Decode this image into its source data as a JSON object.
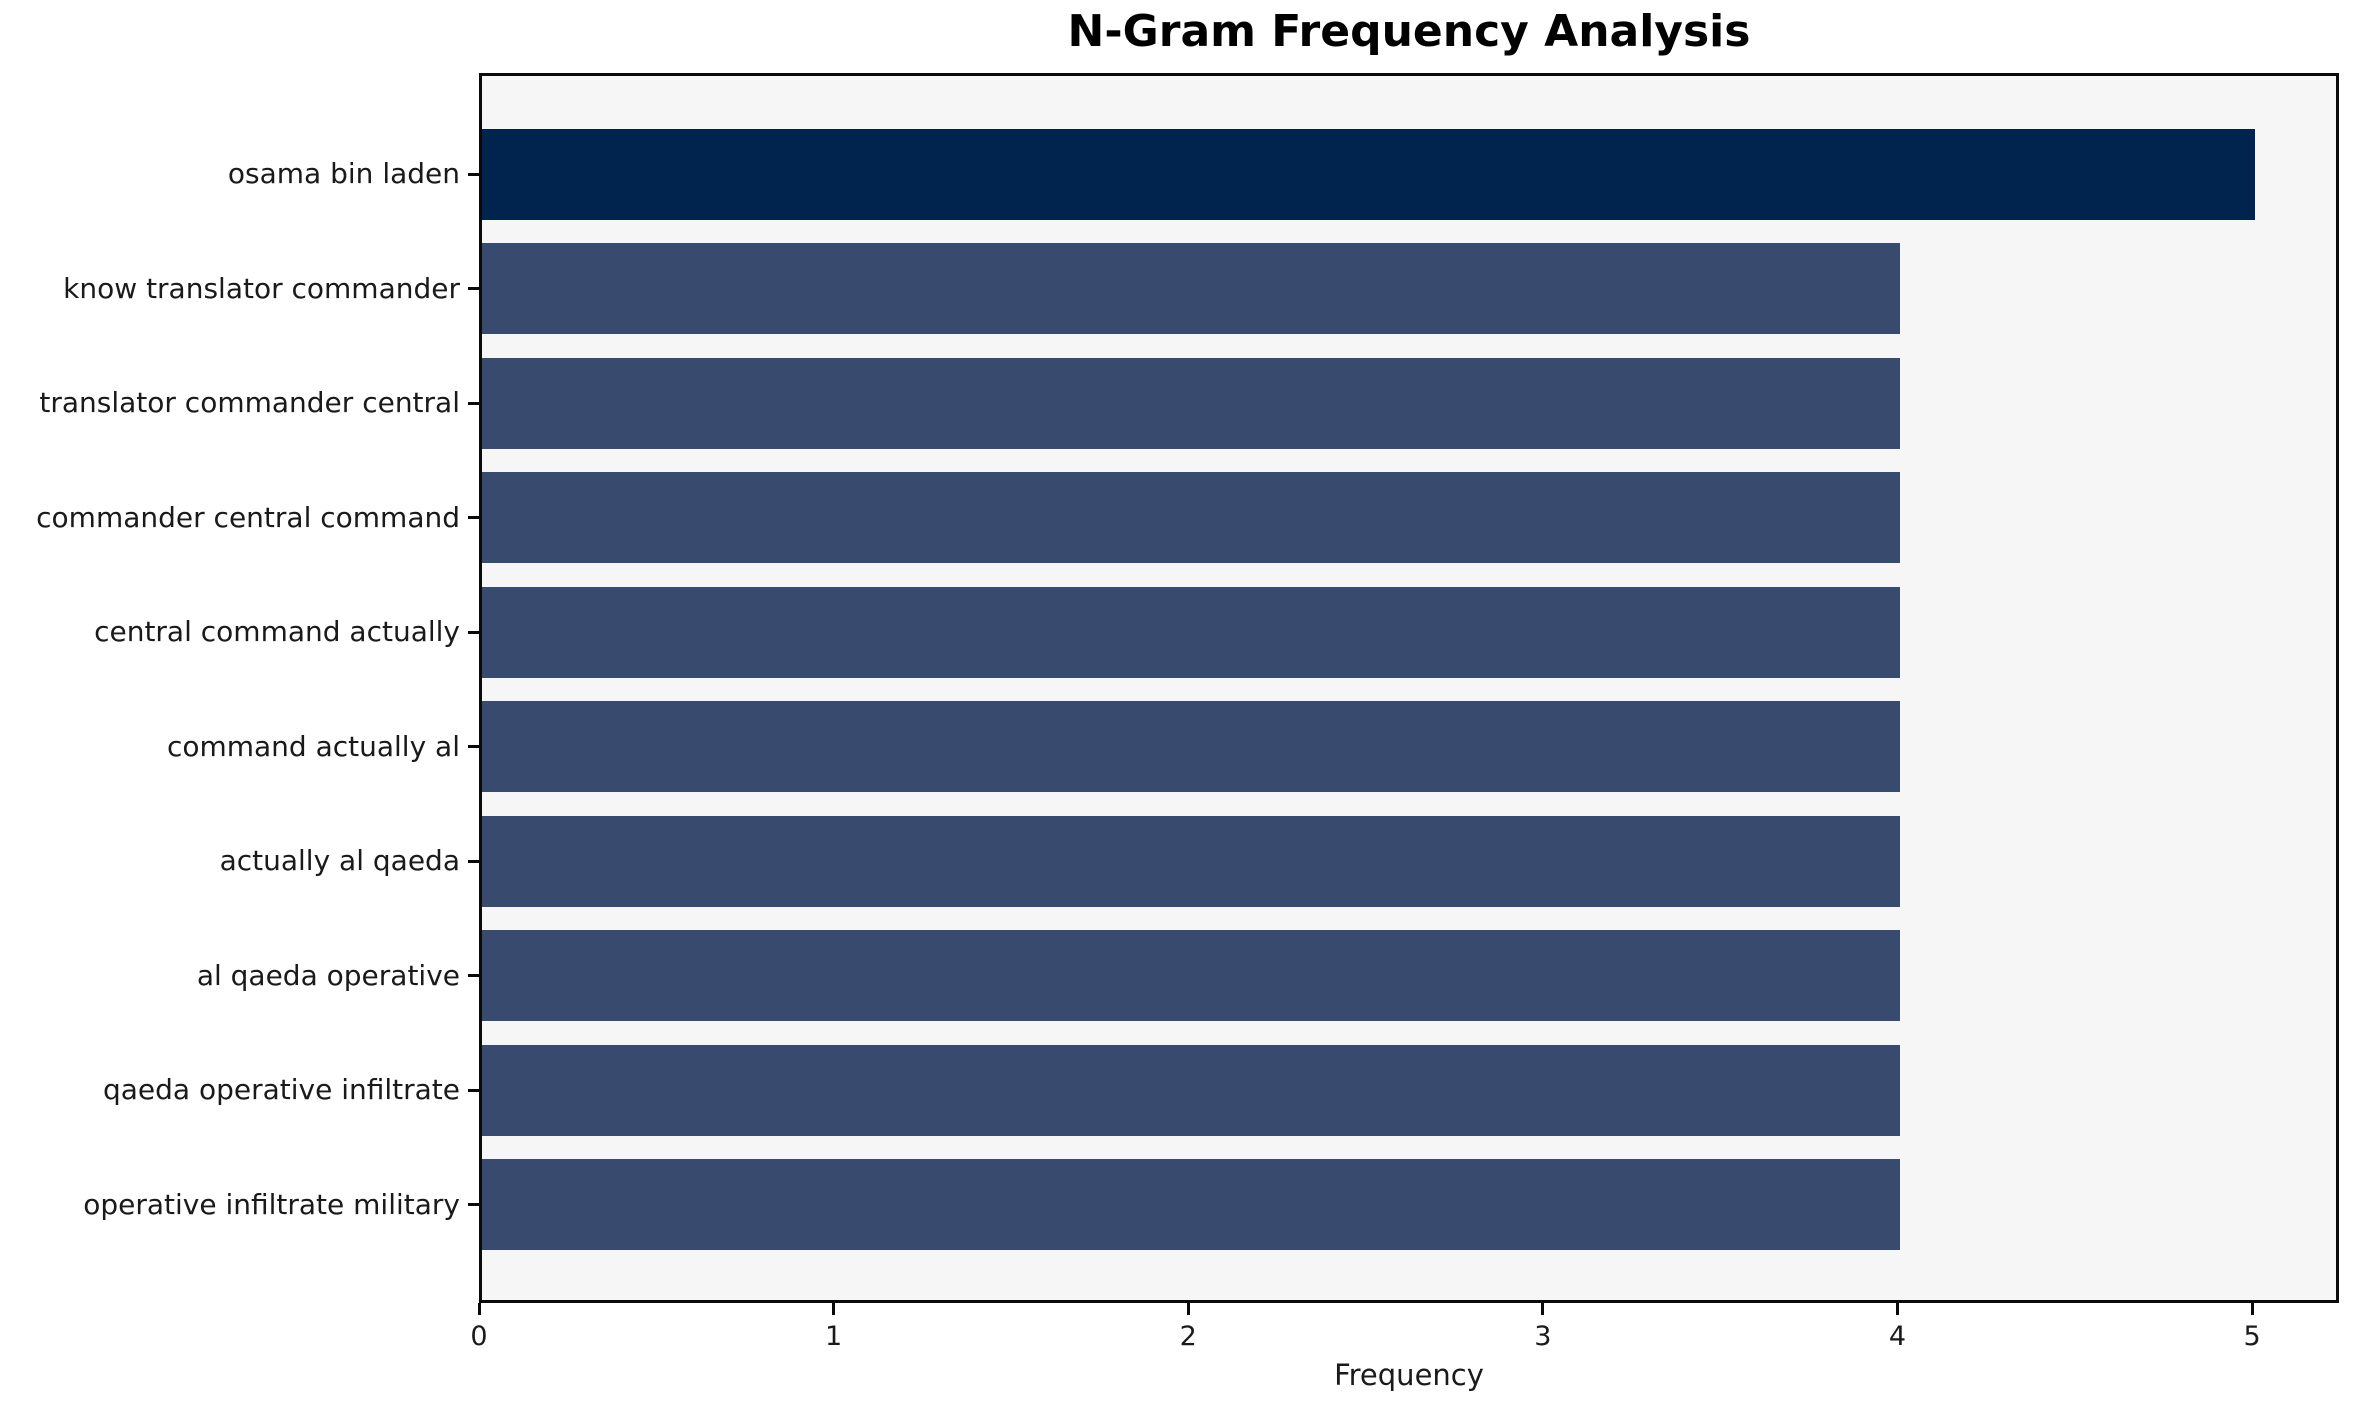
{
  "chart_data": {
    "type": "bar",
    "orientation": "horizontal",
    "title": "N-Gram Frequency Analysis",
    "xlabel": "Frequency",
    "ylabel": "",
    "categories": [
      "osama bin laden",
      "know translator commander",
      "translator commander central",
      "commander central command",
      "central command actually",
      "command actually al",
      "actually al qaeda",
      "al qaeda operative",
      "qaeda operative infiltrate",
      "operative infiltrate military"
    ],
    "values": [
      5,
      4,
      4,
      4,
      4,
      4,
      4,
      4,
      4,
      4
    ],
    "xticks": [
      0,
      1,
      2,
      3,
      4,
      5
    ],
    "xlim": [
      0,
      5.245
    ],
    "grid": false,
    "legend": null,
    "colors": {
      "bar_first": "#01244e",
      "bar_rest": "#384a6e",
      "plot_background": "#f6f6f7",
      "figure_background": "#ffffff",
      "axis": "#0a0a0a",
      "text": "#000000"
    }
  }
}
